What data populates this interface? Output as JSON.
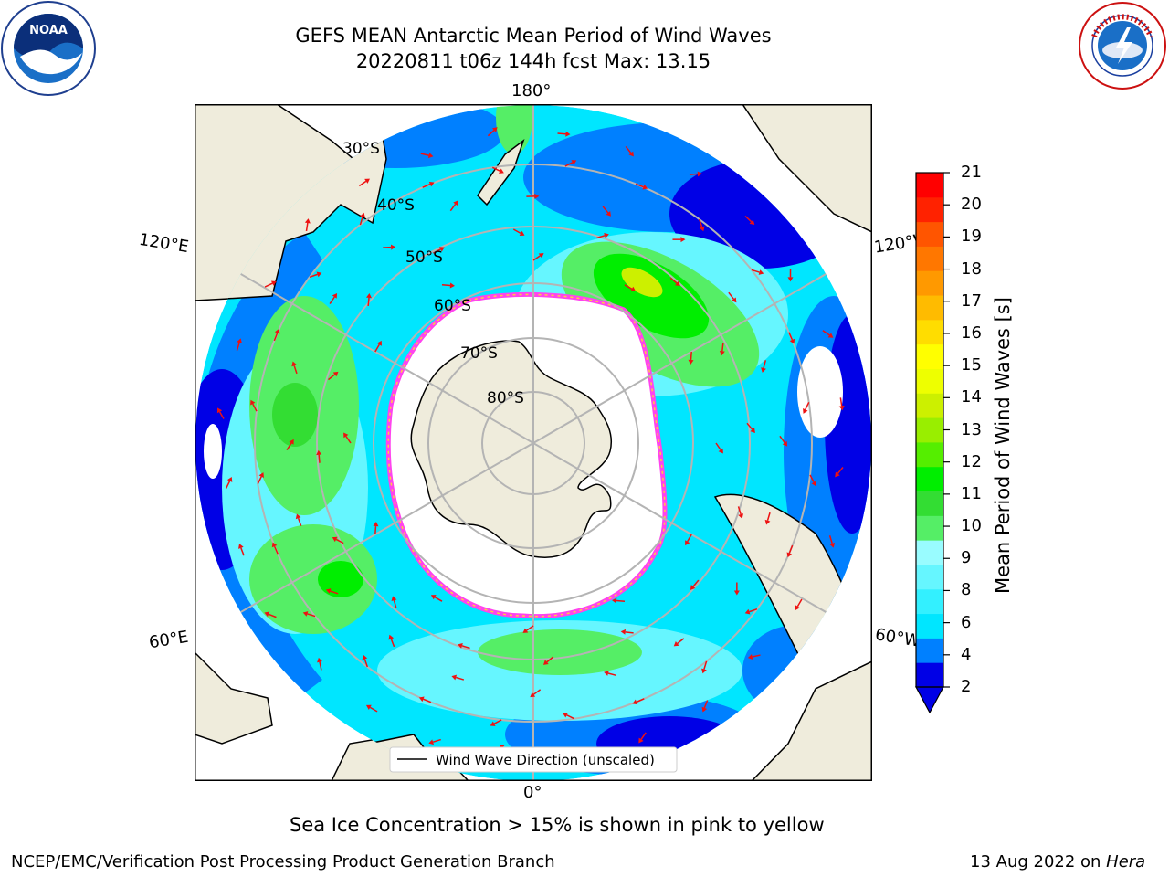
{
  "header": {
    "title_line1": "GEFS MEAN Antarctic Mean Period of Wind Waves",
    "title_line2": "20220811 t06z 144h fcst   Max: 13.15"
  },
  "logos": {
    "left": {
      "name": "noaa-logo",
      "text": "NOAA",
      "ring_text": "NATIONAL OCEANIC AND ATMOSPHERIC ADMINISTRATION · U.S. DEPARTMENT OF COMMERCE"
    },
    "right": {
      "name": "nws-logo",
      "ring_text": "NATIONAL WEATHER SERVICE"
    }
  },
  "map": {
    "projection": "south-polar-stereographic",
    "longitude_labels": {
      "top": "180°",
      "left_upper": "120°E",
      "right_upper": "120°W",
      "left_lower": "60°E",
      "right_lower": "60°W",
      "bottom": "0°"
    },
    "latitude_labels": [
      "30°S",
      "40°S",
      "50°S",
      "60°S",
      "70°S",
      "80°S"
    ],
    "legend_label": "Wind Wave Direction (unscaled)",
    "colors": {
      "land": "#efecdc",
      "ice_edge": "#ff44ee",
      "arrow": "#ee1111",
      "grid": "#b4b4b4"
    }
  },
  "colorbar": {
    "title": "Mean Period of Wind Waves [s]",
    "ticks": [
      "21",
      "20",
      "19",
      "18",
      "17",
      "16",
      "15",
      "14",
      "13",
      "12",
      "11",
      "10",
      "9",
      "8",
      "6",
      "4",
      "2"
    ],
    "colors": [
      "#0000e6",
      "#0080ff",
      "#00e6ff",
      "#33f0ff",
      "#66f6ff",
      "#99fcff",
      "#55ee66",
      "#33dd33",
      "#00ee00",
      "#55ee00",
      "#99ee00",
      "#ccf000",
      "#eeff00",
      "#ffff00",
      "#ffdd00",
      "#ffbb00",
      "#ff9900",
      "#ff7700",
      "#ff5500",
      "#ff2200",
      "#ff0000"
    ]
  },
  "caption": "Sea Ice Concentration > 15% is shown in pink to yellow",
  "footer": {
    "left": "NCEP/EMC/Verification Post Processing Product Generation Branch",
    "date": "13 Aug 2022 on ",
    "machine": "Hera"
  }
}
